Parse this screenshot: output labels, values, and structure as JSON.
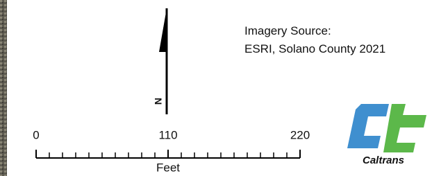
{
  "north_arrow": {
    "label": "N"
  },
  "source": {
    "line1": "Imagery Source:",
    "line2": "ESRI, Solano County 2021"
  },
  "scale_bar": {
    "ticks": [
      0,
      110,
      220
    ],
    "unit": "Feet"
  },
  "logo": {
    "label": "Caltrans"
  }
}
